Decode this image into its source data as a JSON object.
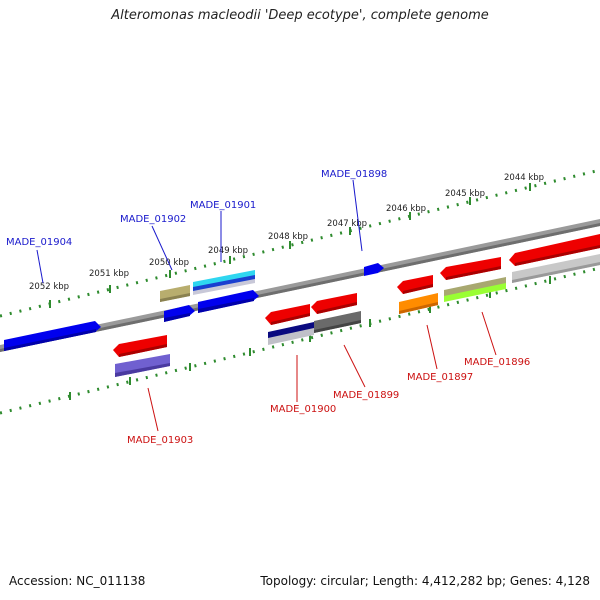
{
  "title": "Alteromonas macleodii 'Deep ecotype', complete genome",
  "footer": {
    "accession": "Accession: NC_011138",
    "summary": "Topology: circular; Length: 4,412,282 bp; Genes: 4,128"
  },
  "colors": {
    "forward_label": "#1a1acc",
    "reverse_label": "#cc1111",
    "backbone": "#8a8a8a",
    "tick": "#2e8b2e"
  },
  "scale_labels": [
    "2052 kbp",
    "2051 kbp",
    "2050 kbp",
    "2049 kbp",
    "2048 kbp",
    "2047 kbp",
    "2046 kbp",
    "2045 kbp",
    "2044 kbp"
  ],
  "gene_labels_forward": [
    "MADE_01904",
    "MADE_01902",
    "MADE_01901",
    "MADE_01898"
  ],
  "gene_labels_reverse": [
    "MADE_01903",
    "MADE_01900",
    "MADE_01899",
    "MADE_01897",
    "MADE_01896"
  ]
}
